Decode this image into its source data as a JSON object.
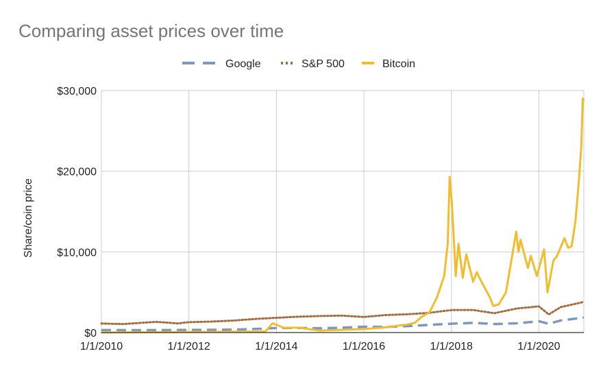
{
  "chart_data": {
    "type": "line",
    "title": "Comparing asset prices over time",
    "xlabel": "",
    "ylabel": "Share/coin price",
    "x_range": [
      "2010-01-01",
      "2021-01-10"
    ],
    "ylim": [
      0,
      30000
    ],
    "x_ticks": [
      "1/1/2010",
      "1/1/2012",
      "1/1/2014",
      "1/1/2016",
      "1/1/2018",
      "1/1/2020"
    ],
    "y_ticks": [
      "$0",
      "$10,000",
      "$20,000",
      "$30,000"
    ],
    "y_tick_values": [
      0,
      10000,
      20000,
      30000
    ],
    "grid": true,
    "legend_position": "top",
    "series": [
      {
        "name": "Google",
        "color": "#7e97bd",
        "style": "dashed",
        "points": [
          [
            "2010-01-01",
            310
          ],
          [
            "2011-01-01",
            300
          ],
          [
            "2012-01-01",
            320
          ],
          [
            "2013-01-01",
            360
          ],
          [
            "2013-07-01",
            440
          ],
          [
            "2014-01-01",
            560
          ],
          [
            "2014-07-01",
            580
          ],
          [
            "2015-01-01",
            530
          ],
          [
            "2015-07-01",
            600
          ],
          [
            "2016-01-01",
            720
          ],
          [
            "2016-07-01",
            700
          ],
          [
            "2017-01-01",
            800
          ],
          [
            "2017-07-01",
            950
          ],
          [
            "2018-01-01",
            1100
          ],
          [
            "2018-07-01",
            1200
          ],
          [
            "2019-01-01",
            1050
          ],
          [
            "2019-07-01",
            1150
          ],
          [
            "2020-01-01",
            1400
          ],
          [
            "2020-03-20",
            1100
          ],
          [
            "2020-07-01",
            1500
          ],
          [
            "2021-01-10",
            1850
          ]
        ]
      },
      {
        "name": "S&P 500",
        "color": "#a26c3f",
        "style": "dotted",
        "points": [
          [
            "2010-01-01",
            1120
          ],
          [
            "2010-07-01",
            1050
          ],
          [
            "2011-04-01",
            1330
          ],
          [
            "2011-10-01",
            1130
          ],
          [
            "2012-01-01",
            1280
          ],
          [
            "2012-07-01",
            1360
          ],
          [
            "2013-01-01",
            1480
          ],
          [
            "2013-07-01",
            1680
          ],
          [
            "2014-01-01",
            1830
          ],
          [
            "2014-07-01",
            1960
          ],
          [
            "2015-01-01",
            2050
          ],
          [
            "2015-07-01",
            2100
          ],
          [
            "2016-01-01",
            1930
          ],
          [
            "2016-07-01",
            2170
          ],
          [
            "2017-01-01",
            2270
          ],
          [
            "2017-07-01",
            2450
          ],
          [
            "2018-01-01",
            2790
          ],
          [
            "2018-07-01",
            2800
          ],
          [
            "2018-12-24",
            2400
          ],
          [
            "2019-07-01",
            2980
          ],
          [
            "2020-01-01",
            3250
          ],
          [
            "2020-03-23",
            2240
          ],
          [
            "2020-07-01",
            3150
          ],
          [
            "2021-01-10",
            3800
          ]
        ]
      },
      {
        "name": "Bitcoin",
        "color": "#f1bd2d",
        "style": "solid",
        "points": [
          [
            "2010-01-01",
            0
          ],
          [
            "2013-10-01",
            130
          ],
          [
            "2013-12-01",
            1150
          ],
          [
            "2014-03-01",
            600
          ],
          [
            "2014-07-01",
            600
          ],
          [
            "2015-01-01",
            250
          ],
          [
            "2016-01-01",
            430
          ],
          [
            "2016-07-01",
            650
          ],
          [
            "2017-01-01",
            1000
          ],
          [
            "2017-03-01",
            1200
          ],
          [
            "2017-05-01",
            2000
          ],
          [
            "2017-07-01",
            2500
          ],
          [
            "2017-09-01",
            4300
          ],
          [
            "2017-11-01",
            7000
          ],
          [
            "2017-12-01",
            11000
          ],
          [
            "2017-12-17",
            19300
          ],
          [
            "2018-01-05",
            16000
          ],
          [
            "2018-02-06",
            7000
          ],
          [
            "2018-03-01",
            11000
          ],
          [
            "2018-04-06",
            6800
          ],
          [
            "2018-05-05",
            9700
          ],
          [
            "2018-07-01",
            6300
          ],
          [
            "2018-08-01",
            7500
          ],
          [
            "2018-09-01",
            6500
          ],
          [
            "2018-11-20",
            4300
          ],
          [
            "2018-12-15",
            3300
          ],
          [
            "2019-02-01",
            3500
          ],
          [
            "2019-04-01",
            5000
          ],
          [
            "2019-06-26",
            12500
          ],
          [
            "2019-07-15",
            10000
          ],
          [
            "2019-08-01",
            11500
          ],
          [
            "2019-10-01",
            8000
          ],
          [
            "2019-10-26",
            9500
          ],
          [
            "2019-12-15",
            7000
          ],
          [
            "2020-02-13",
            10300
          ],
          [
            "2020-03-13",
            5000
          ],
          [
            "2020-05-01",
            8900
          ],
          [
            "2020-06-01",
            9500
          ],
          [
            "2020-08-01",
            11700
          ],
          [
            "2020-09-01",
            10500
          ],
          [
            "2020-10-01",
            10700
          ],
          [
            "2020-11-01",
            13800
          ],
          [
            "2020-12-01",
            19000
          ],
          [
            "2020-12-20",
            23000
          ],
          [
            "2021-01-01",
            29000
          ],
          [
            "2021-01-08",
            28800
          ]
        ]
      }
    ]
  }
}
